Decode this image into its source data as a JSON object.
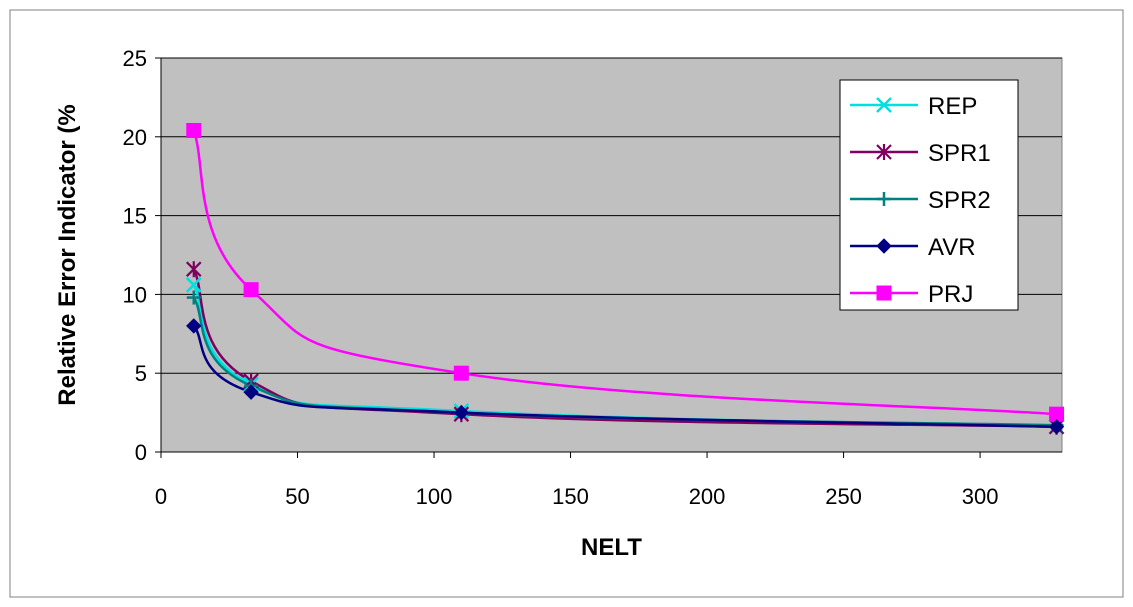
{
  "chart_data": {
    "type": "line",
    "xlabel": "NELT",
    "ylabel": "Relative Error Indicator (%",
    "xlim": [
      0,
      330
    ],
    "ylim": [
      0,
      25
    ],
    "xticks": [
      0,
      50,
      100,
      150,
      200,
      250,
      300
    ],
    "yticks": [
      0,
      5,
      10,
      15,
      20,
      25
    ],
    "grid": "horizontal",
    "legend_position": "top-right",
    "plot_background": "#c0c0c0",
    "series": [
      {
        "name": "REP",
        "color": "#00e0e0",
        "marker": "x",
        "x": [
          12,
          33,
          110,
          328
        ],
        "y": [
          10.6,
          4.3,
          2.6,
          1.6
        ]
      },
      {
        "name": "SPR1",
        "color": "#800060",
        "marker": "asterisk",
        "x": [
          12,
          33,
          110,
          328
        ],
        "y": [
          11.6,
          4.5,
          2.4,
          1.6
        ]
      },
      {
        "name": "SPR2",
        "color": "#008080",
        "marker": "plus",
        "x": [
          12,
          33,
          110,
          328
        ],
        "y": [
          9.8,
          4.2,
          2.5,
          1.7
        ]
      },
      {
        "name": "AVR",
        "color": "#000080",
        "marker": "diamond",
        "x": [
          12,
          33,
          110,
          328
        ],
        "y": [
          8.0,
          3.8,
          2.5,
          1.6
        ]
      },
      {
        "name": "PRJ",
        "color": "#ff00ff",
        "marker": "square",
        "x": [
          12,
          33,
          110,
          328
        ],
        "y": [
          20.4,
          10.3,
          5.0,
          2.4
        ]
      }
    ]
  }
}
